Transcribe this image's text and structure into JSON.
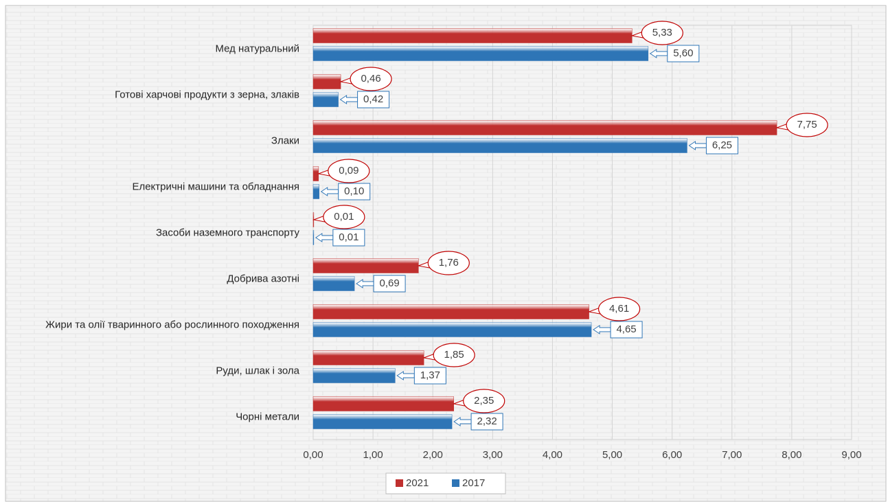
{
  "chart_data": {
    "type": "hbar",
    "categories": [
      "Мед натуральний",
      "Готові харчові продукти з зерна, злаків",
      "Злаки",
      "Електричні машини та обладнання",
      "Засоби наземного транспорту",
      "Добрива азотні",
      "Жири та олії тваринного або рослинного походження",
      "Руди, шлак і зола",
      "Чорні метали"
    ],
    "series": [
      {
        "name": "2021",
        "color": "#c0302f",
        "values": [
          5.33,
          0.46,
          7.75,
          0.09,
          0.01,
          1.76,
          4.61,
          1.85,
          2.35
        ],
        "value_labels": [
          "5,33",
          "0,46",
          "7,75",
          "0,09",
          "0,01",
          "1,76",
          "4,61",
          "1,85",
          "2,35"
        ]
      },
      {
        "name": "2017",
        "color": "#2e75b6",
        "values": [
          5.6,
          0.42,
          6.25,
          0.1,
          0.01,
          0.69,
          4.65,
          1.37,
          2.32
        ],
        "value_labels": [
          "5,60",
          "0,42",
          "6,25",
          "0,10",
          "0,01",
          "0,69",
          "4,65",
          "1,37",
          "2,32"
        ]
      }
    ],
    "xlim": [
      0,
      9
    ],
    "xticks": [
      {
        "value": 0,
        "label": "0,00"
      },
      {
        "value": 1,
        "label": "1,00"
      },
      {
        "value": 2,
        "label": "2,00"
      },
      {
        "value": 3,
        "label": "3,00"
      },
      {
        "value": 4,
        "label": "4,00"
      },
      {
        "value": 5,
        "label": "5,00"
      },
      {
        "value": 6,
        "label": "6,00"
      },
      {
        "value": 7,
        "label": "7,00"
      },
      {
        "value": 8,
        "label": "8,00"
      },
      {
        "value": 9,
        "label": "9,00"
      }
    ],
    "grid": true,
    "legend": "bottom"
  }
}
